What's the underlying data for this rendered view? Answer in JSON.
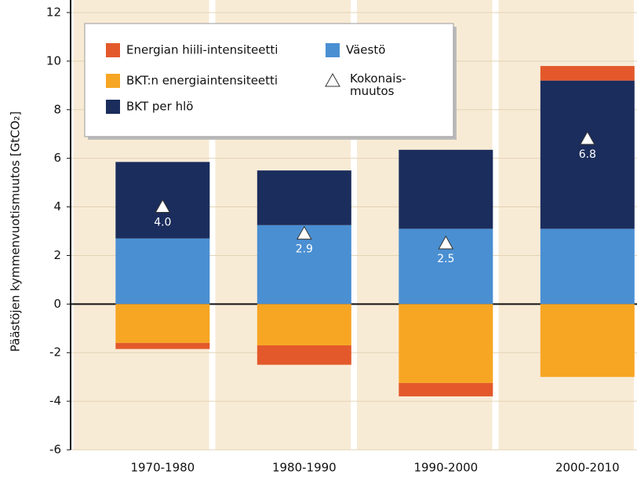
{
  "chart_data": {
    "type": "stacked-bar",
    "y_label": "Päästöjen kymmenvuotismuutos [GtCO₂]",
    "categories": [
      "1970-1980",
      "1980-1990",
      "1990-2000",
      "2000-2010"
    ],
    "series": [
      {
        "name": "Väestö",
        "color": "#4a8fd2",
        "values": [
          2.7,
          3.25,
          3.1,
          3.1
        ]
      },
      {
        "name": "BKT per hlö",
        "color": "#1b2d5c",
        "values": [
          3.15,
          2.25,
          3.25,
          6.1
        ]
      },
      {
        "name": "BKT:n energiaintensiteetti",
        "color": "#f6a623",
        "values": [
          -1.6,
          -1.7,
          -3.25,
          -3.0
        ]
      },
      {
        "name": "Energian hiili-intensiteetti",
        "color": "#e3592b",
        "values": [
          -0.25,
          -0.8,
          -0.55,
          0.6
        ]
      }
    ],
    "total": {
      "name": "Kokonais-\nmuutos",
      "values": [
        4.0,
        2.9,
        2.5,
        6.8
      ],
      "value_labels": [
        "4.0",
        "2.9",
        "2.5",
        "6.8"
      ]
    },
    "ylim": [
      -6,
      12
    ],
    "yticks": [
      -6,
      -4,
      -2,
      0,
      2,
      4,
      6,
      8,
      10,
      12
    ],
    "grid": true
  }
}
